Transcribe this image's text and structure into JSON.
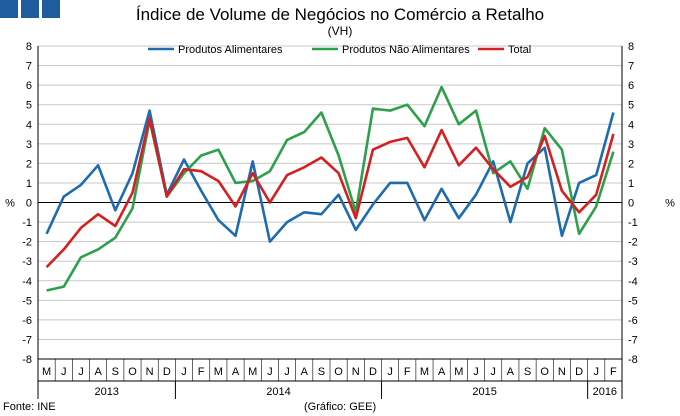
{
  "header": {
    "title": "Índice de Volume de Negócios no Comércio a Retalho",
    "subtitle": "(VH)",
    "square_color": "#1f5c9e"
  },
  "footer": {
    "source": "Fonte: INE",
    "credit": "(Gráfico: GEE)"
  },
  "chart_data": {
    "type": "line",
    "ylabel": "%",
    "ylim": [
      -8,
      8
    ],
    "yticks": [
      -8,
      -7,
      -6,
      -5,
      -4,
      -3,
      -2,
      -1,
      0,
      1,
      2,
      3,
      4,
      5,
      6,
      7,
      8
    ],
    "grid": "horizontal",
    "legend_position": "top",
    "x": [
      "M",
      "J",
      "J",
      "A",
      "S",
      "O",
      "N",
      "D",
      "J",
      "F",
      "M",
      "A",
      "M",
      "J",
      "J",
      "A",
      "S",
      "O",
      "N",
      "D",
      "J",
      "F",
      "M",
      "A",
      "M",
      "J",
      "J",
      "A",
      "S",
      "O",
      "N",
      "D",
      "J",
      "F"
    ],
    "years": [
      {
        "label": "2013",
        "start": 0,
        "end": 7
      },
      {
        "label": "2014",
        "start": 8,
        "end": 19
      },
      {
        "label": "2015",
        "start": 20,
        "end": 31
      },
      {
        "label": "2016",
        "start": 32,
        "end": 33
      }
    ],
    "series": [
      {
        "name": "Produtos Alimentares",
        "color": "#1f6bb0",
        "values": [
          -1.6,
          0.3,
          0.9,
          1.9,
          -0.4,
          1.5,
          4.7,
          0.4,
          2.2,
          0.6,
          -0.9,
          -1.7,
          2.1,
          -2.0,
          -1.0,
          -0.5,
          -0.6,
          0.4,
          -1.4,
          -0.1,
          1.0,
          1.0,
          -0.9,
          0.7,
          -0.8,
          0.4,
          2.1,
          -1.0,
          2.0,
          2.8,
          -1.7,
          1.0,
          1.4,
          4.6
        ]
      },
      {
        "name": "Produtos Não Alimentares",
        "color": "#2ca04a",
        "values": [
          -4.5,
          -4.3,
          -2.8,
          -2.4,
          -1.8,
          -0.3,
          4.2,
          0.3,
          1.5,
          2.4,
          2.7,
          1.0,
          1.1,
          1.6,
          3.2,
          3.6,
          4.6,
          2.4,
          -0.5,
          4.8,
          4.7,
          5.0,
          3.9,
          5.9,
          4.0,
          4.7,
          1.5,
          2.1,
          0.7,
          3.8,
          2.7,
          -1.6,
          -0.2,
          2.6
        ]
      },
      {
        "name": "Total",
        "color": "#d42020",
        "values": [
          -3.3,
          -2.4,
          -1.3,
          -0.6,
          -1.2,
          0.5,
          4.3,
          0.3,
          1.7,
          1.6,
          1.1,
          -0.2,
          1.5,
          0.0,
          1.4,
          1.8,
          2.3,
          1.5,
          -0.8,
          2.7,
          3.1,
          3.3,
          1.8,
          3.7,
          1.9,
          2.8,
          1.7,
          0.8,
          1.3,
          3.4,
          0.6,
          -0.5,
          0.4,
          3.5
        ]
      }
    ]
  }
}
